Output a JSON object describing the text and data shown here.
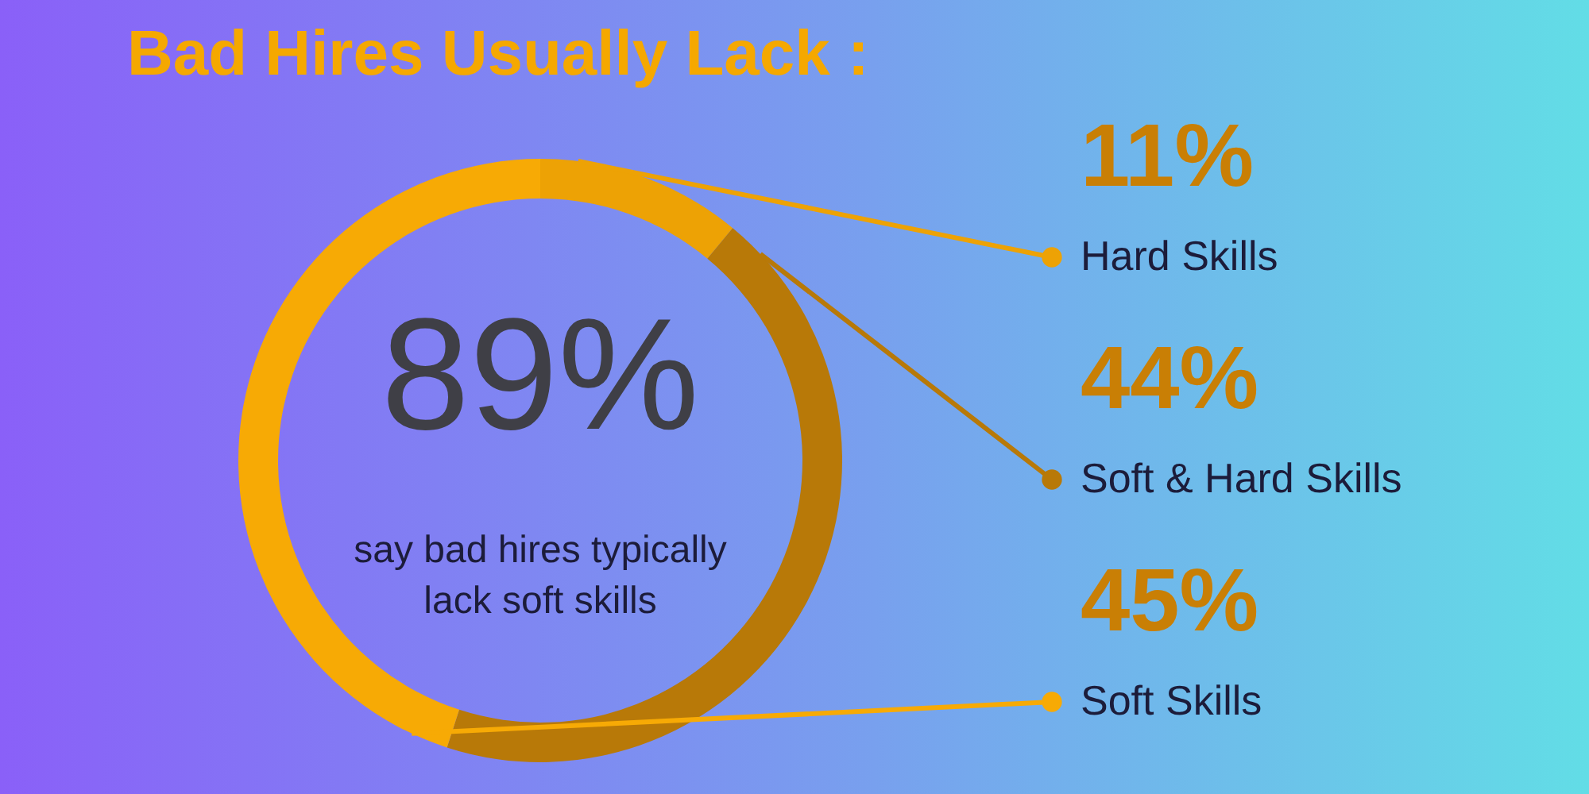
{
  "chart_data": {
    "type": "donut",
    "title": "Bad Hires Usually Lack :",
    "categories": [
      "Hard Skills",
      "Soft & Hard Skills",
      "Soft Skills"
    ],
    "values": [
      11,
      44,
      45
    ],
    "colors": [
      "#eda205",
      "#b87908",
      "#f7aa05"
    ],
    "value_labels": [
      "11%",
      "44%",
      "45%"
    ],
    "legend": "right",
    "annotations": [
      "89%",
      "say bad hires typically lack soft skills"
    ]
  }
}
